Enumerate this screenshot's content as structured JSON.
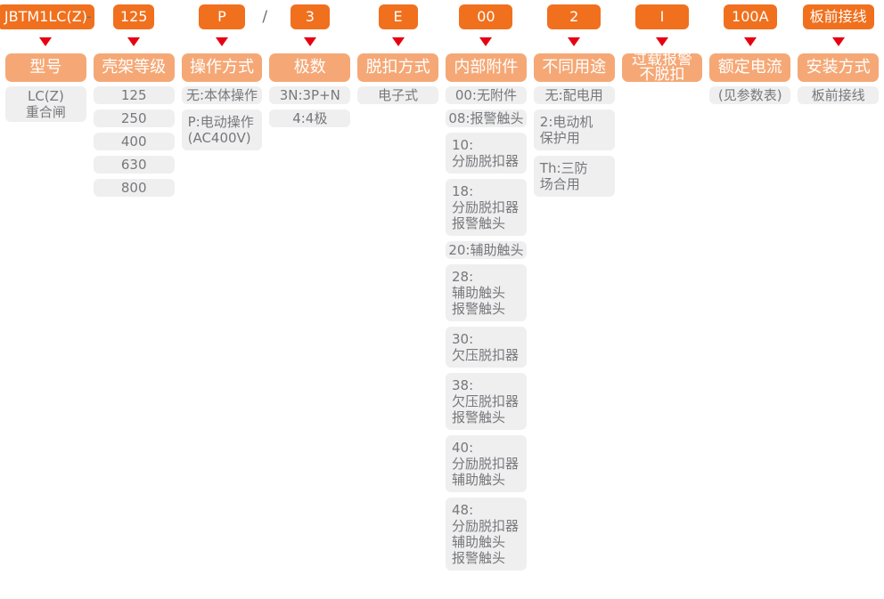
{
  "theme": {
    "page_bg": "#ffffff",
    "badge_bg": "#f0701e",
    "badge_text": "#ffffff",
    "label_bg": "#f5a876",
    "label_text": "#ffffff",
    "arrow": "#e60014",
    "option_bg": "#efeff0",
    "option_text": "#77787b",
    "separator_text": "#6d6e71"
  },
  "icons": {
    "down_arrow": "triangle-down"
  },
  "columns": [
    {
      "id": "model",
      "badge": "JBTM1LC(Z)",
      "label_lines": [
        "型号"
      ],
      "options": [
        {
          "lines": [
            "LC(Z)",
            "重合闸"
          ]
        }
      ]
    },
    {
      "id": "frame-rating",
      "separator_before": "-",
      "badge": "125",
      "label_lines": [
        "壳架等级"
      ],
      "options": [
        {
          "lines": [
            "125"
          ]
        },
        {
          "lines": [
            "250"
          ]
        },
        {
          "lines": [
            "400"
          ]
        },
        {
          "lines": [
            "630"
          ]
        },
        {
          "lines": [
            "800"
          ]
        }
      ]
    },
    {
      "id": "operation-mode",
      "badge": "P",
      "label_lines": [
        "操作方式"
      ],
      "options": [
        {
          "lines": [
            "无:本体操作"
          ]
        },
        {
          "lines": [
            "P:电动操作",
            "(AC400V)"
          ]
        }
      ]
    },
    {
      "id": "poles",
      "separator_before": "/",
      "badge": "3",
      "label_lines": [
        "极数"
      ],
      "options": [
        {
          "lines": [
            "3N:3P+N"
          ]
        },
        {
          "lines": [
            "4:4极"
          ]
        }
      ]
    },
    {
      "id": "trip-mode",
      "badge": "E",
      "label_lines": [
        "脱扣方式"
      ],
      "options": [
        {
          "lines": [
            "电子式"
          ]
        }
      ]
    },
    {
      "id": "internal-accessories",
      "badge": "00",
      "label_lines": [
        "内部附件"
      ],
      "options": [
        {
          "lines": [
            "00:无附件"
          ]
        },
        {
          "lines": [
            "08:报警触头"
          ]
        },
        {
          "lines": [
            "10:",
            "分励脱扣器"
          ]
        },
        {
          "lines": [
            "18:",
            "分励脱扣器",
            "报警触头"
          ]
        },
        {
          "lines": [
            "20:辅助触头"
          ]
        },
        {
          "lines": [
            "28:",
            "辅助触头",
            "报警触头"
          ]
        },
        {
          "lines": [
            "30:",
            "欠压脱扣器"
          ]
        },
        {
          "lines": [
            "38:",
            "欠压脱扣器",
            "报警触头"
          ]
        },
        {
          "lines": [
            "40:",
            "分励脱扣器",
            "辅助触头"
          ]
        },
        {
          "lines": [
            "48:",
            "分励脱扣器",
            "辅助触头",
            "报警触头"
          ]
        }
      ]
    },
    {
      "id": "application",
      "badge": "2",
      "label_lines": [
        "不同用途"
      ],
      "options": [
        {
          "lines": [
            "无:配电用"
          ]
        },
        {
          "lines": [
            "2:电动机",
            "保护用"
          ]
        },
        {
          "lines": [
            "Th:三防",
            "场合用"
          ]
        }
      ]
    },
    {
      "id": "overload-alarm-no-trip",
      "badge": "I",
      "label_lines": [
        "过载报警",
        "不脱扣"
      ],
      "options": []
    },
    {
      "id": "rated-current",
      "badge": "100A",
      "label_lines": [
        "额定电流"
      ],
      "options": [
        {
          "lines": [
            "(见参数表)"
          ]
        }
      ]
    },
    {
      "id": "installation",
      "badge": "板前接线",
      "label_lines": [
        "安装方式"
      ],
      "options": [
        {
          "lines": [
            "板前接线"
          ]
        }
      ]
    }
  ]
}
